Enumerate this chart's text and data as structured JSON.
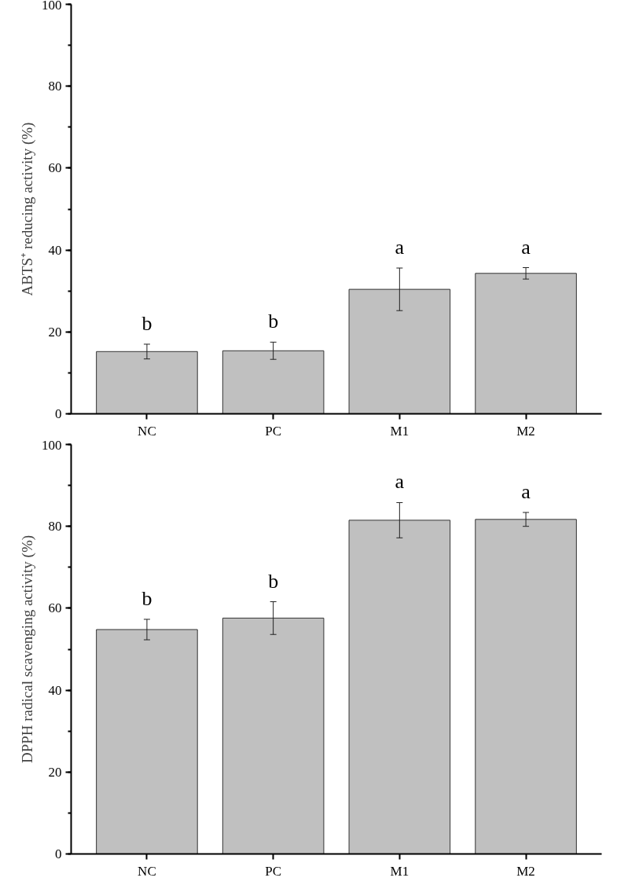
{
  "chart_data": [
    {
      "type": "bar",
      "ylabel": "ABTS⁺ reducing activity (%)",
      "categories": [
        "NC",
        "PC",
        "M1",
        "M2"
      ],
      "values": [
        15.2,
        15.4,
        30.4,
        34.3
      ],
      "errors": [
        1.8,
        2.1,
        5.2,
        1.4
      ],
      "color": "#c0c0c0",
      "ylim": [
        0,
        100
      ],
      "yticks": [
        0,
        20,
        40,
        60,
        80,
        100
      ],
      "grid": false,
      "annotations": [
        "b",
        "b",
        "a",
        "a"
      ]
    },
    {
      "type": "bar",
      "ylabel": "DPPH radical scavenging activity (%)",
      "categories": [
        "NC",
        "PC",
        "M1",
        "M2"
      ],
      "values": [
        54.8,
        57.6,
        81.5,
        81.7
      ],
      "errors": [
        2.5,
        4.0,
        4.3,
        1.7
      ],
      "color": "#c0c0c0",
      "ylim": [
        0,
        100
      ],
      "yticks": [
        0,
        20,
        40,
        60,
        80,
        100
      ],
      "grid": false,
      "annotations": [
        "b",
        "b",
        "a",
        "a"
      ]
    }
  ]
}
